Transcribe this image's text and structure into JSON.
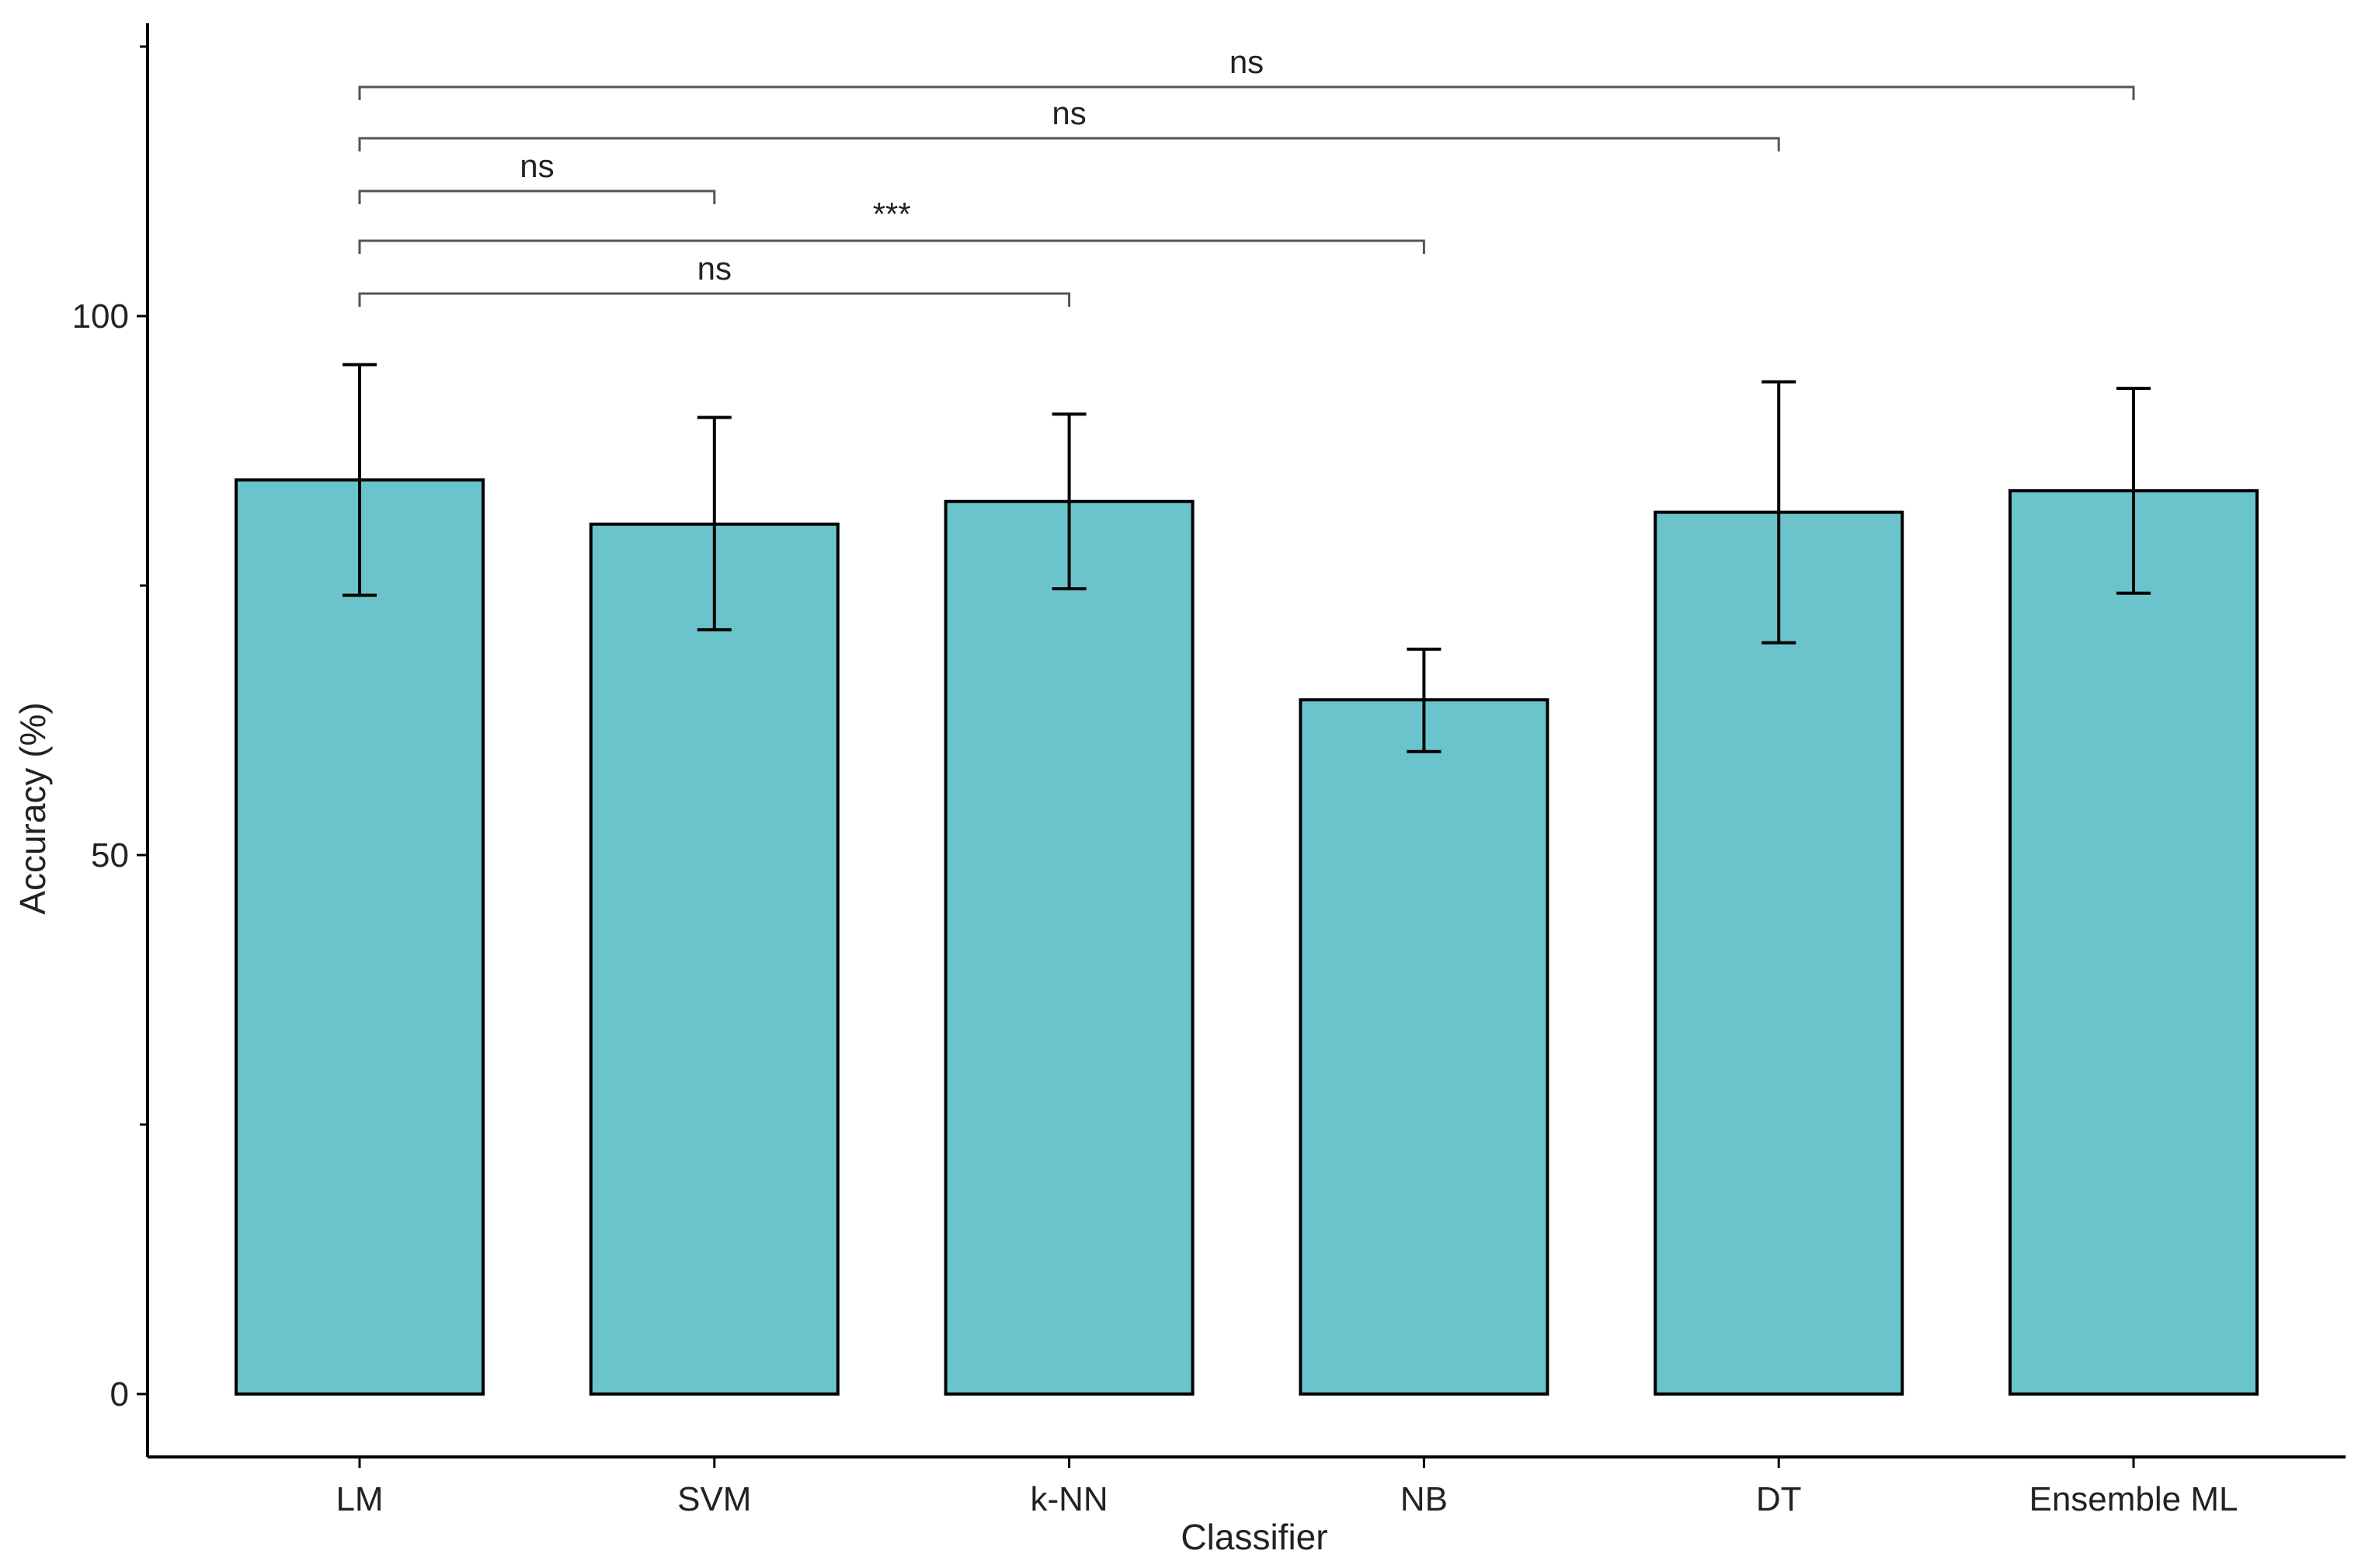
{
  "chart_data": {
    "type": "bar",
    "title": "",
    "xlabel": "Classifier",
    "ylabel": "Accuracy (%)",
    "ylim": [
      -6,
      125
    ],
    "yticks": [
      0,
      50,
      100
    ],
    "grid": false,
    "bar_color": "#6bc4cc",
    "categories": [
      "LM",
      "SVM",
      "k-NN",
      "NB",
      "DT",
      "Ensemble ML"
    ],
    "values": [
      84.8,
      80.7,
      82.8,
      64.4,
      81.8,
      83.8
    ],
    "error_low": [
      74.1,
      70.9,
      74.7,
      59.6,
      69.7,
      74.3
    ],
    "error_high": [
      95.5,
      90.6,
      90.9,
      69.1,
      93.9,
      93.3
    ],
    "comparisons": [
      {
        "from": "LM",
        "to": "k-NN",
        "label": "ns",
        "level": 1
      },
      {
        "from": "LM",
        "to": "NB",
        "label": "***",
        "level": 2
      },
      {
        "from": "LM",
        "to": "SVM",
        "label": "ns",
        "level": 3
      },
      {
        "from": "LM",
        "to": "DT",
        "label": "ns",
        "level": 4
      },
      {
        "from": "LM",
        "to": "Ensemble ML",
        "label": "ns",
        "level": 5
      }
    ]
  }
}
